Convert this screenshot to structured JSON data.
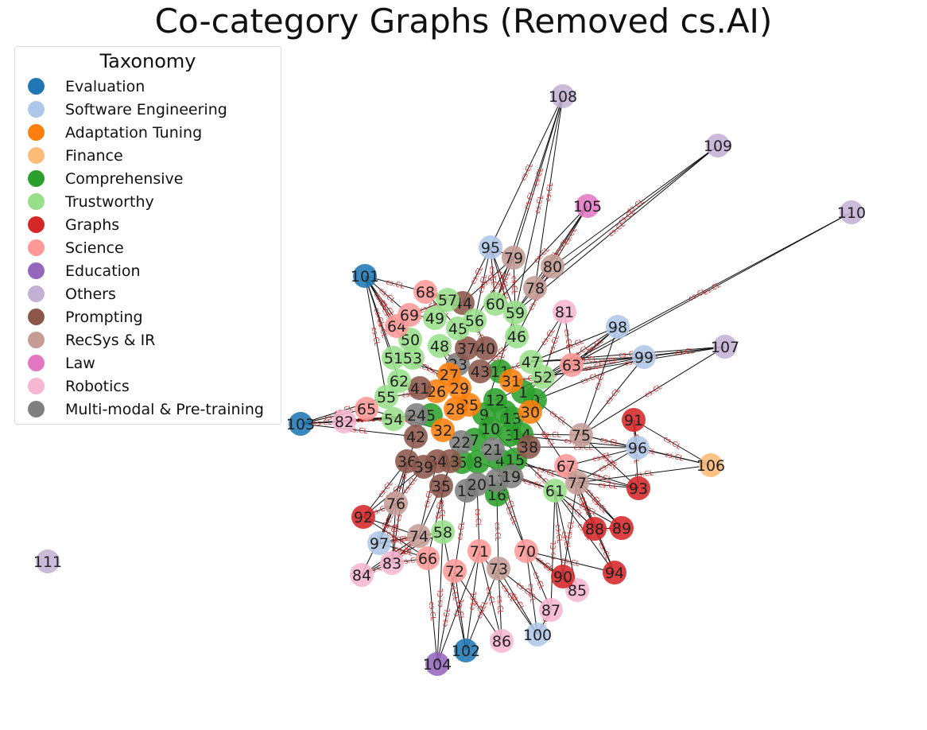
{
  "title": "Co-category Graphs (Removed cs.AI)",
  "legend": {
    "title": "Taxonomy",
    "items": [
      {
        "label": "Evaluation",
        "color": "#1f77b4"
      },
      {
        "label": "Software Engineering",
        "color": "#aec7e8"
      },
      {
        "label": "Adaptation Tuning",
        "color": "#ff7f0e"
      },
      {
        "label": "Finance",
        "color": "#ffbb78"
      },
      {
        "label": "Comprehensive",
        "color": "#2ca02c"
      },
      {
        "label": "Trustworthy",
        "color": "#98df8a"
      },
      {
        "label": "Graphs",
        "color": "#d62728"
      },
      {
        "label": "Science",
        "color": "#ff9896"
      },
      {
        "label": "Education",
        "color": "#9467bd"
      },
      {
        "label": "Others",
        "color": "#c5b0d5"
      },
      {
        "label": "Prompting",
        "color": "#8c564b"
      },
      {
        "label": "RecSys & IR",
        "color": "#c49c94"
      },
      {
        "label": "Law",
        "color": "#e377c2"
      },
      {
        "label": "Robotics",
        "color": "#f7b6d2"
      },
      {
        "label": "Multi-modal & Pre-training",
        "color": "#7f7f7f"
      }
    ]
  },
  "edge_label": "cs.CL",
  "nodes": [
    {
      "id": "0",
      "cat": "Comprehensive"
    },
    {
      "id": "1",
      "cat": "Comprehensive"
    },
    {
      "id": "2",
      "cat": "Comprehensive"
    },
    {
      "id": "3",
      "cat": "Comprehensive"
    },
    {
      "id": "4",
      "cat": "Comprehensive"
    },
    {
      "id": "5",
      "cat": "Comprehensive"
    },
    {
      "id": "6",
      "cat": "Comprehensive"
    },
    {
      "id": "7",
      "cat": "Comprehensive"
    },
    {
      "id": "8",
      "cat": "Comprehensive"
    },
    {
      "id": "9",
      "cat": "Comprehensive"
    },
    {
      "id": "10",
      "cat": "Comprehensive"
    },
    {
      "id": "11",
      "cat": "Comprehensive"
    },
    {
      "id": "12",
      "cat": "Comprehensive"
    },
    {
      "id": "13",
      "cat": "Comprehensive"
    },
    {
      "id": "14",
      "cat": "Comprehensive"
    },
    {
      "id": "15",
      "cat": "Comprehensive"
    },
    {
      "id": "16",
      "cat": "Comprehensive"
    },
    {
      "id": "17",
      "cat": "Multi-modal & Pre-training"
    },
    {
      "id": "18",
      "cat": "Multi-modal & Pre-training"
    },
    {
      "id": "19",
      "cat": "Multi-modal & Pre-training"
    },
    {
      "id": "20",
      "cat": "Multi-modal & Pre-training"
    },
    {
      "id": "21",
      "cat": "Multi-modal & Pre-training"
    },
    {
      "id": "22",
      "cat": "Multi-modal & Pre-training"
    },
    {
      "id": "23",
      "cat": "Multi-modal & Pre-training"
    },
    {
      "id": "24",
      "cat": "Multi-modal & Pre-training"
    },
    {
      "id": "25",
      "cat": "Adaptation Tuning"
    },
    {
      "id": "26",
      "cat": "Adaptation Tuning"
    },
    {
      "id": "27",
      "cat": "Adaptation Tuning"
    },
    {
      "id": "28",
      "cat": "Adaptation Tuning"
    },
    {
      "id": "29",
      "cat": "Adaptation Tuning"
    },
    {
      "id": "30",
      "cat": "Adaptation Tuning"
    },
    {
      "id": "31",
      "cat": "Adaptation Tuning"
    },
    {
      "id": "32",
      "cat": "Adaptation Tuning"
    },
    {
      "id": "33",
      "cat": "Prompting"
    },
    {
      "id": "34",
      "cat": "Prompting"
    },
    {
      "id": "35",
      "cat": "Prompting"
    },
    {
      "id": "36",
      "cat": "Prompting"
    },
    {
      "id": "37",
      "cat": "Prompting"
    },
    {
      "id": "38",
      "cat": "Prompting"
    },
    {
      "id": "39",
      "cat": "Prompting"
    },
    {
      "id": "40",
      "cat": "Prompting"
    },
    {
      "id": "41",
      "cat": "Prompting"
    },
    {
      "id": "42",
      "cat": "Prompting"
    },
    {
      "id": "43",
      "cat": "Prompting"
    },
    {
      "id": "44",
      "cat": "Prompting"
    },
    {
      "id": "45",
      "cat": "Trustworthy"
    },
    {
      "id": "46",
      "cat": "Trustworthy"
    },
    {
      "id": "47",
      "cat": "Trustworthy"
    },
    {
      "id": "48",
      "cat": "Trustworthy"
    },
    {
      "id": "49",
      "cat": "Trustworthy"
    },
    {
      "id": "50",
      "cat": "Trustworthy"
    },
    {
      "id": "51",
      "cat": "Trustworthy"
    },
    {
      "id": "52",
      "cat": "Trustworthy"
    },
    {
      "id": "53",
      "cat": "Trustworthy"
    },
    {
      "id": "54",
      "cat": "Trustworthy"
    },
    {
      "id": "55",
      "cat": "Trustworthy"
    },
    {
      "id": "56",
      "cat": "Trustworthy"
    },
    {
      "id": "57",
      "cat": "Trustworthy"
    },
    {
      "id": "58",
      "cat": "Trustworthy"
    },
    {
      "id": "59",
      "cat": "Trustworthy"
    },
    {
      "id": "60",
      "cat": "Trustworthy"
    },
    {
      "id": "61",
      "cat": "Trustworthy"
    },
    {
      "id": "62",
      "cat": "Trustworthy"
    },
    {
      "id": "63",
      "cat": "Science"
    },
    {
      "id": "64",
      "cat": "Science"
    },
    {
      "id": "65",
      "cat": "Science"
    },
    {
      "id": "66",
      "cat": "Science"
    },
    {
      "id": "67",
      "cat": "Science"
    },
    {
      "id": "68",
      "cat": "Science"
    },
    {
      "id": "69",
      "cat": "Science"
    },
    {
      "id": "70",
      "cat": "Science"
    },
    {
      "id": "71",
      "cat": "Science"
    },
    {
      "id": "72",
      "cat": "Science"
    },
    {
      "id": "73",
      "cat": "RecSys & IR"
    },
    {
      "id": "74",
      "cat": "RecSys & IR"
    },
    {
      "id": "75",
      "cat": "RecSys & IR"
    },
    {
      "id": "76",
      "cat": "RecSys & IR"
    },
    {
      "id": "77",
      "cat": "RecSys & IR"
    },
    {
      "id": "78",
      "cat": "RecSys & IR"
    },
    {
      "id": "79",
      "cat": "RecSys & IR"
    },
    {
      "id": "80",
      "cat": "RecSys & IR"
    },
    {
      "id": "81",
      "cat": "Robotics"
    },
    {
      "id": "82",
      "cat": "Robotics"
    },
    {
      "id": "83",
      "cat": "Robotics"
    },
    {
      "id": "84",
      "cat": "Robotics"
    },
    {
      "id": "85",
      "cat": "Robotics"
    },
    {
      "id": "86",
      "cat": "Robotics"
    },
    {
      "id": "87",
      "cat": "Robotics"
    },
    {
      "id": "88",
      "cat": "Graphs"
    },
    {
      "id": "89",
      "cat": "Graphs"
    },
    {
      "id": "90",
      "cat": "Graphs"
    },
    {
      "id": "91",
      "cat": "Graphs"
    },
    {
      "id": "92",
      "cat": "Graphs"
    },
    {
      "id": "93",
      "cat": "Graphs"
    },
    {
      "id": "94",
      "cat": "Graphs"
    },
    {
      "id": "95",
      "cat": "Software Engineering"
    },
    {
      "id": "96",
      "cat": "Software Engineering"
    },
    {
      "id": "97",
      "cat": "Software Engineering"
    },
    {
      "id": "98",
      "cat": "Software Engineering"
    },
    {
      "id": "99",
      "cat": "Software Engineering"
    },
    {
      "id": "100",
      "cat": "Software Engineering"
    },
    {
      "id": "101",
      "cat": "Evaluation"
    },
    {
      "id": "102",
      "cat": "Evaluation"
    },
    {
      "id": "103",
      "cat": "Evaluation"
    },
    {
      "id": "104",
      "cat": "Education"
    },
    {
      "id": "105",
      "cat": "Law"
    },
    {
      "id": "106",
      "cat": "Finance"
    },
    {
      "id": "107",
      "cat": "Others"
    },
    {
      "id": "108",
      "cat": "Others"
    },
    {
      "id": "109",
      "cat": "Others"
    },
    {
      "id": "110",
      "cat": "Others"
    },
    {
      "id": "111",
      "cat": "Others"
    }
  ]
}
